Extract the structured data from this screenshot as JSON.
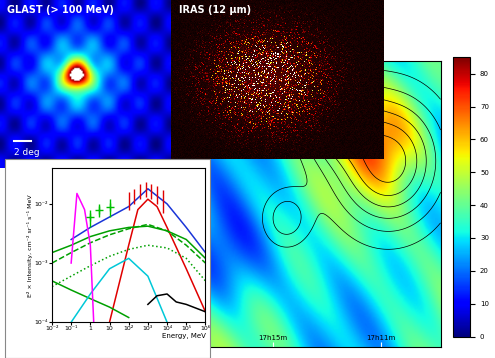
{
  "panels": {
    "glast": {
      "title": "GLAST (> 100 MeV)",
      "extent": [
        -10,
        10,
        -10,
        10
      ],
      "scale_bar": {
        "label": "2 deg",
        "length": 2
      }
    },
    "iras": {
      "title": "IRAS (12 μm)"
    },
    "map": {
      "xlim": [
        259.4,
        257.2
      ],
      "ylim": [
        -40.5,
        -37.5
      ],
      "xticks": [
        {
          "value": 258.75,
          "label": "17h15m"
        },
        {
          "value": 257.75,
          "label": "17h11m"
        }
      ],
      "tick_labels": "x",
      "colorbar": {
        "range": [
          0,
          85
        ],
        "ticks": [
          0,
          10,
          20,
          30,
          40,
          50,
          60,
          70,
          80
        ]
      }
    }
  },
  "chart_data": {
    "type": "line",
    "xlabel": "Energy, MeV",
    "ylabel": "E² × Intensity, cm⁻² sr⁻¹ s⁻¹ MeV",
    "log": true,
    "xlim": [
      0.01,
      1000000
    ],
    "ylim": [
      0.0001,
      0.04
    ],
    "xticks": [
      {
        "value": 0.01,
        "label": "10⁻²"
      },
      {
        "value": 0.1,
        "label": "10⁻¹"
      },
      1,
      10,
      {
        "value": 100,
        "label": "10²"
      },
      {
        "value": 1000,
        "label": "10³"
      },
      {
        "value": 10000,
        "label": "10⁴"
      },
      {
        "value": 100000,
        "label": "10⁵"
      },
      {
        "value": 1000000,
        "label": "10⁶"
      }
    ],
    "yticks": [
      {
        "value": 0.0001,
        "label": "10⁻⁴"
      },
      {
        "value": 0.001,
        "label": "10⁻³"
      },
      {
        "value": 0.01,
        "label": "10⁻²"
      }
    ],
    "series": [
      {
        "type": "line",
        "color": "#1a35d8",
        "line_style": "solid",
        "x": [
          0.1,
          1,
          10,
          100,
          1000,
          10000,
          100000,
          1000000
        ],
        "values": [
          0.0025,
          0.004,
          0.006,
          0.009,
          0.018,
          0.01,
          0.004,
          0.0015
        ]
      },
      {
        "type": "line",
        "color": "#e00000",
        "line_style": "solid",
        "x": [
          10,
          100,
          300,
          1000,
          3000,
          10000,
          100000,
          1000000
        ],
        "values": [
          0.0001,
          0.002,
          0.008,
          0.012,
          0.009,
          0.004,
          0.0008,
          0.00015
        ]
      },
      {
        "type": "line",
        "color": "#00a000",
        "line_style": "solid",
        "x": [
          0.01,
          0.1,
          1,
          10,
          100,
          1000,
          10000,
          100000,
          1000000
        ],
        "values": [
          0.0015,
          0.002,
          0.0028,
          0.0035,
          0.004,
          0.0042,
          0.0035,
          0.0025,
          0.0012
        ]
      },
      {
        "type": "line",
        "color": "#00a000",
        "line_style": "dashed",
        "x": [
          0.01,
          0.1,
          1,
          10,
          100,
          1000,
          10000,
          100000,
          1000000
        ],
        "values": [
          0.001,
          0.0015,
          0.0022,
          0.003,
          0.0038,
          0.0045,
          0.0035,
          0.002,
          0.001
        ]
      },
      {
        "type": "line",
        "color": "#00a000",
        "line_style": "dotted",
        "x": [
          0.01,
          0.1,
          1,
          10,
          100,
          1000,
          10000,
          100000,
          1000000
        ],
        "values": [
          0.0004,
          0.0006,
          0.0009,
          0.0013,
          0.0017,
          0.002,
          0.0018,
          0.0012,
          0.0005
        ]
      },
      {
        "type": "line",
        "color": "#00a000",
        "line_style": "solid",
        "x": [
          0.01,
          0.1,
          1,
          10,
          100
        ],
        "values": [
          0.0005,
          0.00035,
          0.00025,
          0.00018,
          0.00012
        ]
      },
      {
        "type": "line",
        "color": "#00c8d8",
        "line_style": "solid",
        "x": [
          0.1,
          1,
          10,
          100,
          1000,
          10000
        ],
        "values": [
          0.0001,
          0.0003,
          0.0008,
          0.0012,
          0.0006,
          0.0001
        ]
      },
      {
        "type": "line",
        "color": "#000000",
        "line_style": "solid",
        "x": [
          1000,
          3000,
          10000,
          30000,
          100000,
          1000000
        ],
        "values": [
          0.0002,
          0.00028,
          0.0003,
          0.00022,
          0.0002,
          0.00015
        ]
      },
      {
        "type": "line",
        "color": "#ff00ff",
        "line_style": "solid",
        "x": [
          0.1,
          0.2,
          0.5,
          1,
          1.5
        ],
        "values": [
          0.001,
          0.015,
          0.008,
          0.002,
          0.0001
        ]
      },
      {
        "type": "errorbar",
        "color": "#00c000",
        "marker": "plus",
        "x": [
          1,
          3,
          10
        ],
        "values": [
          0.006,
          0.008,
          0.009
        ],
        "errors": [
          0.002,
          0.002,
          0.003
        ]
      },
      {
        "type": "errorbar",
        "color": "#e00000",
        "marker": "none",
        "x": [
          100,
          200,
          400,
          800,
          1500,
          3000,
          6000
        ],
        "values": [
          0.012,
          0.014,
          0.017,
          0.018,
          0.017,
          0.015,
          0.012
        ],
        "errors": [
          0.004,
          0.004,
          0.005,
          0.005,
          0.005,
          0.005,
          0.005
        ]
      }
    ]
  }
}
